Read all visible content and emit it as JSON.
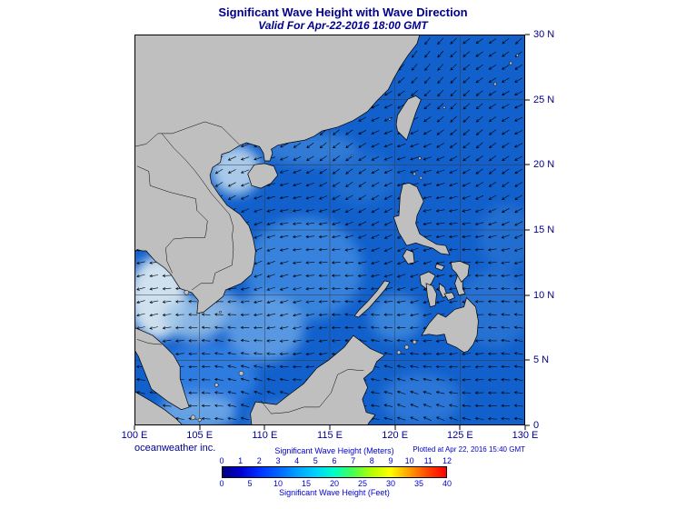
{
  "colors": {
    "background": "#ffffff",
    "title-text": "#00008b",
    "axis-text": "#00008b",
    "note-text": "#0000cd",
    "land": "#bfbfbf",
    "land-border": "#000000",
    "sea-base": "#1160cc",
    "frame": "#000000",
    "grid": "#3a3a3a",
    "arrow": "#000000"
  },
  "header": {
    "title": "Significant Wave Height with Wave Direction",
    "subtitle": "Valid For Apr-22-2016 18:00 GMT"
  },
  "map": {
    "lon_min": 100,
    "lon_max": 130,
    "lat_min": 0,
    "lat_max": 30,
    "grid_step_deg": 5,
    "arrow_step_deg": 1,
    "x_tick_labels": [
      "100 E",
      "105 E",
      "110 E",
      "115 E",
      "120 E",
      "125 E",
      "130 E"
    ],
    "y_tick_labels": [
      "30 N",
      "25 N",
      "20 N",
      "15 N",
      "10 N",
      "5 N",
      "0"
    ],
    "wave_shading": [
      {
        "lon": 101.8,
        "lat": 9.8,
        "rx": 2.2,
        "ry": 3.2,
        "color": "#cfe0ee",
        "opacity": 1
      },
      {
        "lon": 104.6,
        "lat": 8.2,
        "rx": 2.4,
        "ry": 1.6,
        "color": "#9cc4e8",
        "opacity": 0.85
      },
      {
        "lon": 107.8,
        "lat": 19.6,
        "rx": 1.9,
        "ry": 1.9,
        "color": "#a9c9e9",
        "opacity": 1
      },
      {
        "lon": 113.5,
        "lat": 21.2,
        "rx": 3.6,
        "ry": 1.3,
        "color": "#4c90de",
        "opacity": 0.55
      },
      {
        "lon": 113.0,
        "lat": 12.0,
        "rx": 4.5,
        "ry": 4.0,
        "color": "#3c86de",
        "opacity": 0.9
      },
      {
        "lon": 110.0,
        "lat": 7.5,
        "rx": 3.0,
        "ry": 2.6,
        "color": "#5f9fe4",
        "opacity": 0.9
      },
      {
        "lon": 105.6,
        "lat": 3.8,
        "rx": 3.8,
        "ry": 2.6,
        "color": "#2e7de2",
        "opacity": 0.95
      },
      {
        "lon": 104.8,
        "lat": 1.0,
        "rx": 3.0,
        "ry": 1.4,
        "color": "#79b0ea",
        "opacity": 0.8
      },
      {
        "lon": 112.0,
        "lat": 0.6,
        "rx": 3.2,
        "ry": 1.2,
        "color": "#5f9fe4",
        "opacity": 0.6
      },
      {
        "lon": 120.1,
        "lat": 8.3,
        "rx": 2.0,
        "ry": 1.8,
        "color": "#4089dd",
        "opacity": 0.85
      },
      {
        "lon": 127.6,
        "lat": 9.0,
        "rx": 2.8,
        "ry": 3.0,
        "color": "#2d77d4",
        "opacity": 0.75
      },
      {
        "lon": 128.6,
        "lat": 14.5,
        "rx": 2.2,
        "ry": 2.5,
        "color": "#2d77d4",
        "opacity": 0.6
      },
      {
        "lon": 122.0,
        "lat": 2.0,
        "rx": 3.0,
        "ry": 2.0,
        "color": "#3c86de",
        "opacity": 0.6
      },
      {
        "lon": 106.5,
        "lat": 9.3,
        "rx": 1.5,
        "ry": 1.0,
        "color": "#8ab8e6",
        "opacity": 0.8
      },
      {
        "lon": 117.5,
        "lat": 19.0,
        "rx": 2.6,
        "ry": 2.0,
        "color": "#2a74d4",
        "opacity": 0.6
      }
    ]
  },
  "footer": {
    "branding": "oceanweather inc.",
    "plotted_note": "Plotted at Apr 22, 2016 15:40 GMT"
  },
  "colorbar": {
    "title_meters": "Significant Wave Height (Meters)",
    "title_feet": "Significant Wave Height (Feet)",
    "meters_ticks": [
      "0",
      "1",
      "2",
      "3",
      "4",
      "5",
      "6",
      "7",
      "8",
      "9",
      "10",
      "11",
      "12"
    ],
    "feet_ticks": [
      "0",
      "5",
      "10",
      "15",
      "20",
      "25",
      "30",
      "35",
      "40"
    ],
    "gradient_stops": [
      "#000082",
      "#0000d2",
      "#0032ff",
      "#0064ff",
      "#00a0ff",
      "#00d2ff",
      "#00ffc8",
      "#46ff50",
      "#b4ff00",
      "#ffff00",
      "#ffa000",
      "#ff4600",
      "#ff0000"
    ]
  }
}
